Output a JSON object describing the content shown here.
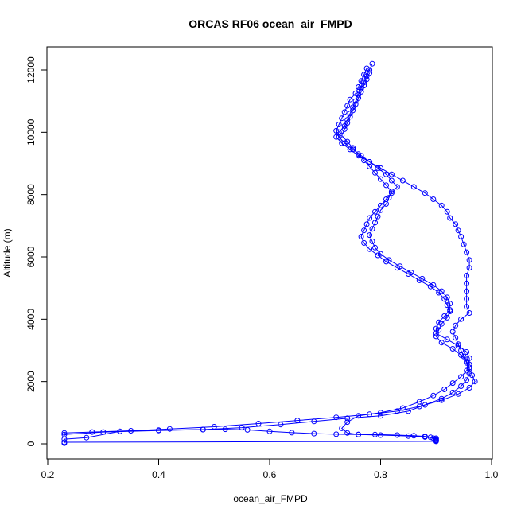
{
  "chart_data": {
    "type": "scatter",
    "title": "ORCAS RF06 ocean_air_FMPD",
    "xlabel": "ocean_air_FMPD",
    "ylabel": "Altitude (m)",
    "xlim": [
      0.2,
      1.0
    ],
    "ylim": [
      0,
      12000
    ],
    "xticks": [
      "0.2",
      "0.4",
      "0.6",
      "0.8",
      "1.0"
    ],
    "yticks": [
      "0",
      "2000",
      "4000",
      "6000",
      "8000",
      "10000",
      "12000"
    ],
    "series": [
      {
        "color": "#0000ff",
        "marker": "open-circle",
        "line": true,
        "points": [
          [
            0.785,
            12200
          ],
          [
            0.78,
            12000
          ],
          [
            0.775,
            11800
          ],
          [
            0.77,
            11600
          ],
          [
            0.765,
            11400
          ],
          [
            0.76,
            11200
          ],
          [
            0.755,
            11000
          ],
          [
            0.75,
            10800
          ],
          [
            0.745,
            10600
          ],
          [
            0.74,
            10400
          ],
          [
            0.735,
            10200
          ],
          [
            0.725,
            10000
          ],
          [
            0.72,
            9850
          ],
          [
            0.73,
            9650
          ],
          [
            0.745,
            9450
          ],
          [
            0.76,
            9250
          ],
          [
            0.78,
            9050
          ],
          [
            0.8,
            8850
          ],
          [
            0.82,
            8650
          ],
          [
            0.84,
            8450
          ],
          [
            0.86,
            8250
          ],
          [
            0.88,
            8050
          ],
          [
            0.895,
            7850
          ],
          [
            0.91,
            7650
          ],
          [
            0.92,
            7450
          ],
          [
            0.925,
            7250
          ],
          [
            0.935,
            7050
          ],
          [
            0.94,
            6850
          ],
          [
            0.945,
            6650
          ],
          [
            0.95,
            6400
          ],
          [
            0.955,
            6150
          ],
          [
            0.96,
            5900
          ],
          [
            0.96,
            5650
          ],
          [
            0.955,
            5400
          ],
          [
            0.955,
            5150
          ],
          [
            0.955,
            4900
          ],
          [
            0.955,
            4650
          ],
          [
            0.955,
            4400
          ],
          [
            0.96,
            4200
          ],
          [
            0.945,
            4000
          ],
          [
            0.935,
            3800
          ],
          [
            0.93,
            3600
          ],
          [
            0.935,
            3400
          ],
          [
            0.94,
            3200
          ],
          [
            0.945,
            3000
          ],
          [
            0.95,
            2800
          ],
          [
            0.955,
            2600
          ],
          [
            0.96,
            2400
          ],
          [
            0.965,
            2200
          ],
          [
            0.97,
            2000
          ],
          [
            0.96,
            1800
          ],
          [
            0.94,
            1600
          ],
          [
            0.91,
            1400
          ],
          [
            0.87,
            1200
          ],
          [
            0.83,
            1050
          ],
          [
            0.78,
            950
          ],
          [
            0.72,
            850
          ],
          [
            0.65,
            750
          ],
          [
            0.58,
            650
          ],
          [
            0.5,
            550
          ],
          [
            0.42,
            480
          ],
          [
            0.35,
            420
          ],
          [
            0.28,
            380
          ],
          [
            0.23,
            350
          ]
        ]
      },
      {
        "color": "#0000ff",
        "marker": "open-circle",
        "line": true,
        "points": [
          [
            0.775,
            12050
          ],
          [
            0.77,
            11850
          ],
          [
            0.765,
            11650
          ],
          [
            0.76,
            11450
          ],
          [
            0.755,
            11250
          ],
          [
            0.745,
            11050
          ],
          [
            0.74,
            10850
          ],
          [
            0.735,
            10650
          ],
          [
            0.73,
            10450
          ],
          [
            0.725,
            10250
          ],
          [
            0.72,
            10050
          ],
          [
            0.725,
            9850
          ],
          [
            0.735,
            9650
          ],
          [
            0.75,
            9450
          ],
          [
            0.765,
            9250
          ],
          [
            0.78,
            9050
          ],
          [
            0.795,
            8850
          ],
          [
            0.81,
            8650
          ],
          [
            0.82,
            8450
          ],
          [
            0.83,
            8250
          ],
          [
            0.82,
            8050
          ],
          [
            0.81,
            7850
          ],
          [
            0.8,
            7650
          ],
          [
            0.79,
            7450
          ],
          [
            0.78,
            7250
          ],
          [
            0.775,
            7050
          ],
          [
            0.77,
            6850
          ],
          [
            0.765,
            6650
          ],
          [
            0.77,
            6450
          ],
          [
            0.78,
            6250
          ],
          [
            0.795,
            6050
          ],
          [
            0.81,
            5850
          ],
          [
            0.83,
            5650
          ],
          [
            0.85,
            5450
          ],
          [
            0.87,
            5250
          ],
          [
            0.89,
            5050
          ],
          [
            0.905,
            4850
          ],
          [
            0.915,
            4650
          ],
          [
            0.92,
            4450
          ],
          [
            0.925,
            4250
          ],
          [
            0.92,
            4050
          ],
          [
            0.91,
            3850
          ],
          [
            0.905,
            3650
          ],
          [
            0.9,
            3450
          ],
          [
            0.91,
            3250
          ],
          [
            0.93,
            3050
          ],
          [
            0.945,
            2850
          ],
          [
            0.955,
            2650
          ],
          [
            0.96,
            2450
          ],
          [
            0.96,
            2250
          ],
          [
            0.955,
            2050
          ],
          [
            0.945,
            1850
          ],
          [
            0.93,
            1650
          ],
          [
            0.91,
            1450
          ],
          [
            0.88,
            1250
          ],
          [
            0.85,
            1050
          ],
          [
            0.8,
            900
          ],
          [
            0.74,
            820
          ],
          [
            0.68,
            720
          ],
          [
            0.62,
            620
          ],
          [
            0.55,
            520
          ],
          [
            0.48,
            460
          ],
          [
            0.4,
            440
          ],
          [
            0.33,
            400
          ],
          [
            0.27,
            200
          ],
          [
            0.23,
            150
          ]
        ]
      },
      {
        "color": "#0000ff",
        "marker": "open-circle",
        "line": true,
        "points": [
          [
            0.78,
            11900
          ],
          [
            0.775,
            11700
          ],
          [
            0.77,
            11500
          ],
          [
            0.765,
            11300
          ],
          [
            0.76,
            11100
          ],
          [
            0.755,
            10900
          ],
          [
            0.75,
            10700
          ],
          [
            0.745,
            10500
          ],
          [
            0.74,
            10300
          ],
          [
            0.735,
            10100
          ],
          [
            0.73,
            9900
          ],
          [
            0.74,
            9700
          ],
          [
            0.75,
            9500
          ],
          [
            0.76,
            9300
          ],
          [
            0.77,
            9100
          ],
          [
            0.78,
            8900
          ],
          [
            0.79,
            8700
          ],
          [
            0.8,
            8500
          ],
          [
            0.81,
            8300
          ],
          [
            0.82,
            8100
          ],
          [
            0.815,
            7900
          ],
          [
            0.81,
            7700
          ],
          [
            0.8,
            7500
          ],
          [
            0.795,
            7300
          ],
          [
            0.79,
            7100
          ],
          [
            0.785,
            6900
          ],
          [
            0.78,
            6700
          ],
          [
            0.785,
            6500
          ],
          [
            0.79,
            6300
          ],
          [
            0.8,
            6100
          ],
          [
            0.815,
            5900
          ],
          [
            0.835,
            5700
          ],
          [
            0.855,
            5500
          ],
          [
            0.875,
            5300
          ],
          [
            0.895,
            5100
          ],
          [
            0.91,
            4900
          ],
          [
            0.92,
            4700
          ],
          [
            0.925,
            4500
          ],
          [
            0.925,
            4300
          ],
          [
            0.915,
            4100
          ],
          [
            0.905,
            3900
          ],
          [
            0.9,
            3700
          ],
          [
            0.9,
            3550
          ],
          [
            0.92,
            3350
          ],
          [
            0.94,
            3150
          ],
          [
            0.955,
            2950
          ],
          [
            0.96,
            2750
          ],
          [
            0.96,
            2550
          ],
          [
            0.955,
            2350
          ],
          [
            0.945,
            2150
          ],
          [
            0.93,
            1950
          ],
          [
            0.915,
            1750
          ],
          [
            0.895,
            1550
          ],
          [
            0.87,
            1350
          ],
          [
            0.84,
            1150
          ],
          [
            0.8,
            1000
          ],
          [
            0.76,
            900
          ],
          [
            0.74,
            700
          ],
          [
            0.73,
            500
          ],
          [
            0.74,
            350
          ],
          [
            0.76,
            300
          ],
          [
            0.8,
            280
          ],
          [
            0.85,
            250
          ],
          [
            0.88,
            220
          ],
          [
            0.9,
            180
          ],
          [
            0.9,
            120
          ]
        ]
      },
      {
        "color": "#0000ff",
        "marker": "open-circle",
        "line": true,
        "points": [
          [
            0.23,
            300
          ],
          [
            0.3,
            380
          ],
          [
            0.4,
            430
          ],
          [
            0.48,
            460
          ],
          [
            0.52,
            470
          ],
          [
            0.56,
            450
          ],
          [
            0.6,
            400
          ],
          [
            0.64,
            360
          ],
          [
            0.68,
            330
          ],
          [
            0.72,
            310
          ],
          [
            0.76,
            300
          ],
          [
            0.79,
            300
          ],
          [
            0.83,
            280
          ],
          [
            0.86,
            260
          ],
          [
            0.88,
            240
          ],
          [
            0.89,
            210
          ],
          [
            0.895,
            180
          ],
          [
            0.9,
            150
          ],
          [
            0.9,
            100
          ],
          [
            0.9,
            80
          ],
          [
            0.23,
            50
          ],
          [
            0.23,
            20
          ]
        ]
      }
    ]
  }
}
